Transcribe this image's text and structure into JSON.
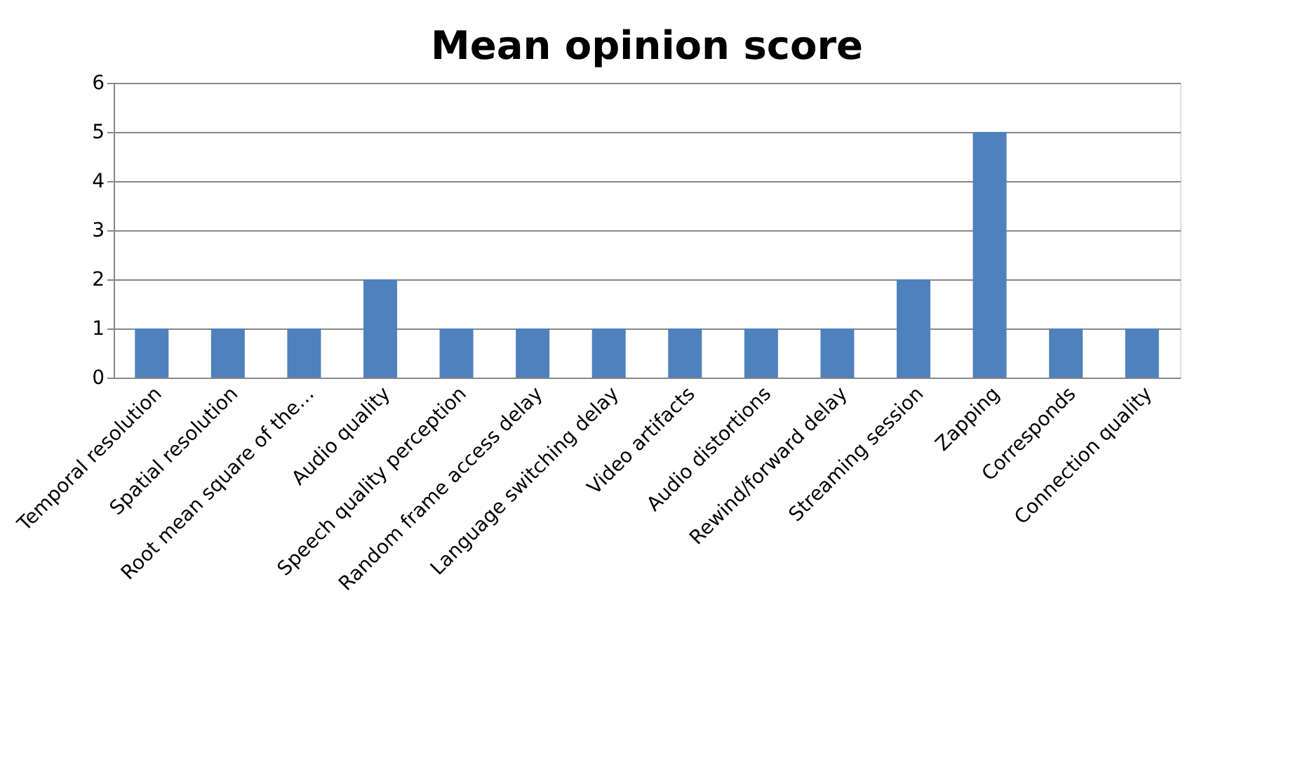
{
  "chart_data": {
    "type": "bar",
    "title": "Mean opinion score",
    "categories": [
      "Temporal resolution",
      "Spatial resolution",
      "Root mean square of the…",
      "Audio quality",
      "Speech quality perception",
      "Random frame access delay",
      "Language switching delay",
      "Video artifacts",
      "Audio distortions",
      "Rewind/forward delay",
      "Streaming session",
      "Zapping",
      "Corresponds",
      "Connection quality"
    ],
    "values": [
      1,
      1,
      1,
      2,
      1,
      1,
      1,
      1,
      1,
      1,
      2,
      5,
      1,
      1
    ],
    "color": "#4f81bd",
    "ylim": [
      0,
      6
    ],
    "yticks": [
      0,
      1,
      2,
      3,
      4,
      5,
      6
    ],
    "grid": "y",
    "legend": false
  }
}
